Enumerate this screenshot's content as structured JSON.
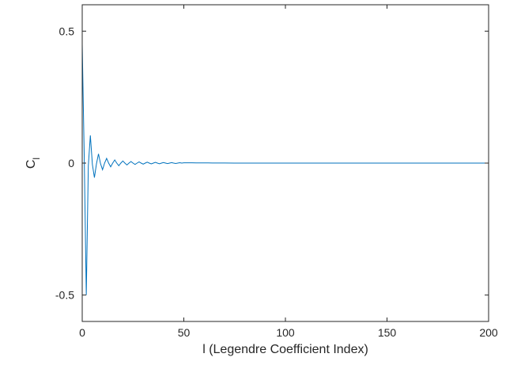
{
  "chart_data": {
    "type": "line",
    "title": "",
    "xlabel": "l (Legendre Coefficient Index)",
    "ylabel": "C",
    "ylabel_subscript": "l",
    "xlim": [
      0,
      200
    ],
    "ylim": [
      -0.6,
      0.6
    ],
    "xticks": [
      0,
      50,
      100,
      150,
      200
    ],
    "xtick_labels": [
      "0",
      "50",
      "100",
      "150",
      "200"
    ],
    "yticks": [
      -0.5,
      0,
      0.5
    ],
    "ytick_labels": [
      "-0.5",
      "0",
      "0.5"
    ],
    "grid": false,
    "legend": "none",
    "line_color": "#0072BD",
    "series": [
      {
        "x": [
          0,
          1,
          2,
          3,
          4,
          5,
          6,
          7,
          8,
          9,
          10,
          11,
          12,
          13,
          14,
          15,
          16,
          17,
          18,
          19,
          20,
          21,
          22,
          23,
          24,
          25,
          26,
          27,
          28,
          29,
          30,
          31,
          32,
          33,
          34,
          35,
          36,
          37,
          38,
          39,
          40,
          41,
          42,
          43,
          44,
          45,
          46,
          47,
          48,
          49,
          50,
          52,
          54,
          56,
          58,
          60,
          62,
          64,
          66,
          68,
          70,
          75,
          80,
          90,
          100,
          120,
          140,
          160,
          180,
          200
        ],
        "y": [
          0.45,
          0.02,
          -0.5,
          -0.01,
          0.105,
          -0.005,
          -0.055,
          -0.003,
          0.035,
          -0.002,
          -0.025,
          0.0,
          0.018,
          0.0,
          -0.014,
          0.0,
          0.012,
          0.0,
          -0.01,
          0.0,
          0.008,
          0.0,
          -0.007,
          0.0,
          0.006,
          0.0,
          -0.005,
          0.0,
          0.0045,
          0.0,
          -0.004,
          0.0,
          0.0035,
          0.0,
          -0.003,
          0.0,
          0.0028,
          0.0,
          -0.0025,
          0.0,
          0.0022,
          0.0,
          -0.002,
          0.0,
          0.0018,
          0.0,
          -0.0016,
          0.0,
          0.0014,
          0.0,
          0.0012,
          0.0011,
          0.001,
          0.0009,
          0.0008,
          0.0007,
          0.0006,
          0.0005,
          0.0004,
          0.0003,
          0.0002,
          0.0001,
          0.0,
          0.0,
          0.0,
          0.0,
          0.0,
          0.0,
          0.0,
          0.0
        ]
      }
    ]
  }
}
